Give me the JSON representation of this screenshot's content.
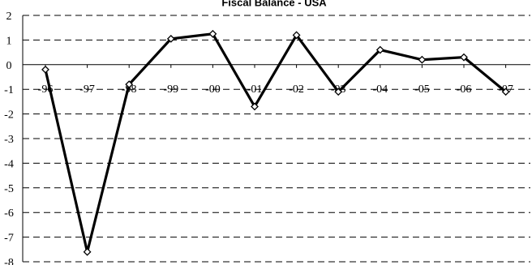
{
  "chart_data": {
    "type": "line",
    "title": "Fiscal Balance - USA",
    "x": [
      "96",
      "97",
      "98",
      "99",
      "00",
      "01",
      "02",
      "03",
      "04",
      "05",
      "06",
      "07"
    ],
    "series": [
      {
        "values": [
          -0.2,
          -7.6,
          -0.8,
          1.05,
          1.25,
          -1.7,
          1.2,
          -1.1,
          0.6,
          0.2,
          0.3,
          -1.1
        ]
      }
    ],
    "ylim": [
      -8,
      2
    ],
    "yticks": [
      2,
      1,
      0,
      -1,
      -2,
      -3,
      -4,
      -5,
      -6,
      -7,
      -8
    ],
    "grid": true,
    "legend": "none",
    "line_color": "#000000",
    "marker": "diamond"
  }
}
